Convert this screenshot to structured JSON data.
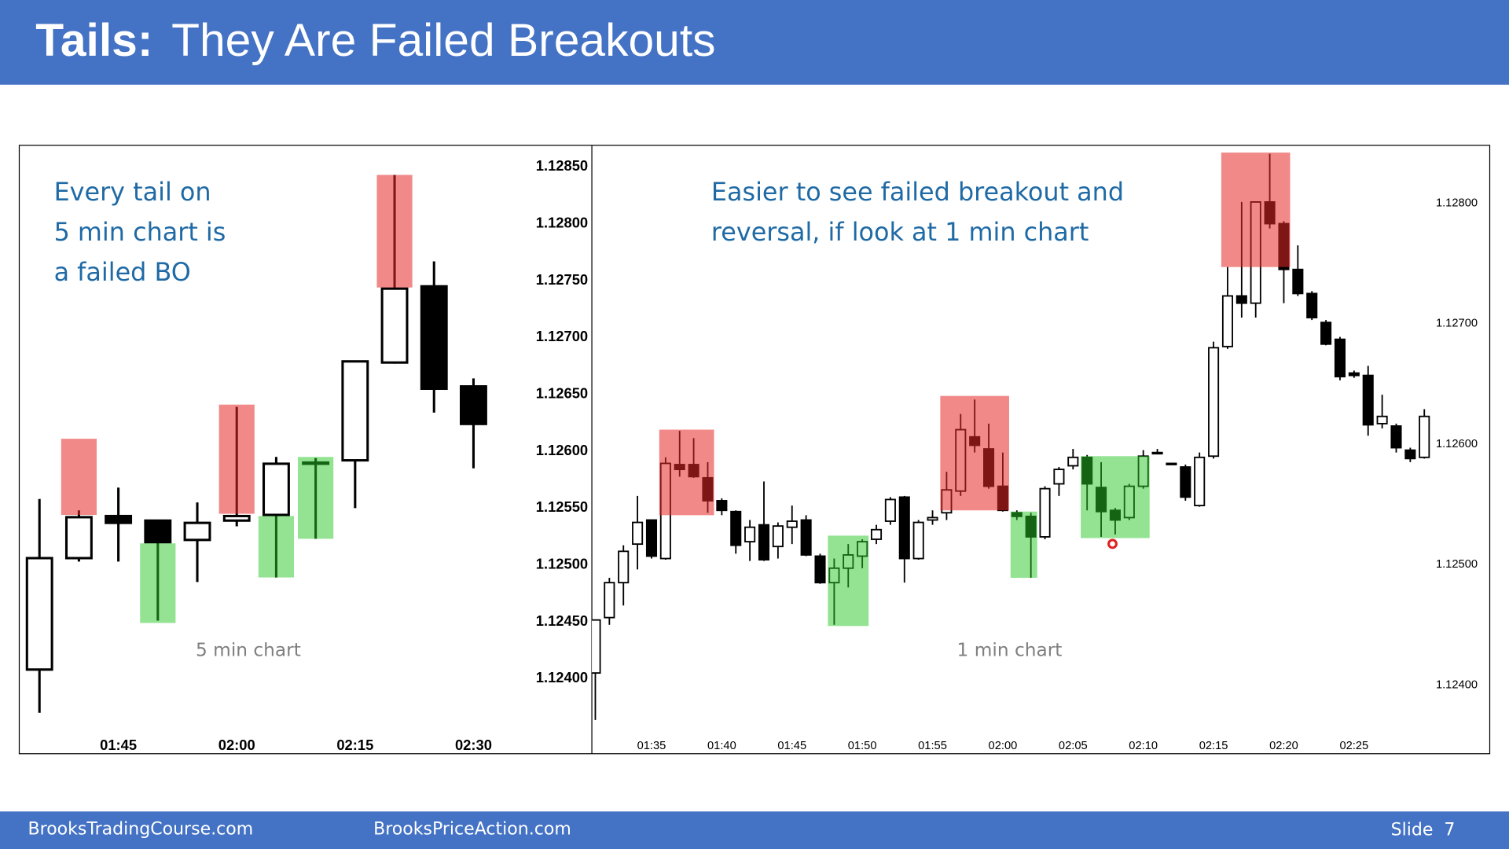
{
  "header": {
    "title_bold": "Tails:",
    "title": "They Are Failed Breakouts"
  },
  "chart_data": [
    {
      "type": "candlestick",
      "label": "5 min chart",
      "annotation": [
        "Every tail on",
        "5 min chart is",
        "a failed BO"
      ],
      "categories": [
        null,
        null,
        "01:45",
        null,
        null,
        "02:00",
        null,
        null,
        "02:15",
        null,
        null,
        "02:30"
      ],
      "open": [
        1.12408,
        1.12506,
        1.12543,
        1.12539,
        1.12522,
        1.12539,
        1.12544,
        1.12589,
        1.12592,
        1.12678,
        1.12745,
        1.12657
      ],
      "high": [
        1.12558,
        1.12548,
        1.12568,
        1.12539,
        1.12555,
        1.12639,
        1.12595,
        1.12594,
        1.12679,
        1.12843,
        1.12767,
        1.12664
      ],
      "low": [
        1.1237,
        1.12503,
        1.12503,
        1.12451,
        1.12485,
        1.12534,
        1.12489,
        1.12523,
        1.1255,
        1.12677,
        1.12634,
        1.12585
      ],
      "close": [
        1.12506,
        1.12542,
        1.12537,
        1.1252,
        1.12537,
        1.12543,
        1.12589,
        1.1259,
        1.12679,
        1.12743,
        1.12655,
        1.12624
      ],
      "up_color": "#ffffff",
      "down_color": "#000000",
      "ylim": [
        1.12334,
        1.12869
      ],
      "yticks": [
        {
          "value": 1.1285,
          "label": "1.12850"
        },
        {
          "value": 1.128,
          "label": "1.12800"
        },
        {
          "value": 1.1275,
          "label": "1.12750"
        },
        {
          "value": 1.127,
          "label": "1.12700"
        },
        {
          "value": 1.1265,
          "label": "1.12650"
        },
        {
          "value": 1.126,
          "label": "1.12600"
        },
        {
          "value": 1.1255,
          "label": "1.12550"
        },
        {
          "value": 1.125,
          "label": "1.12500"
        },
        {
          "value": 1.1245,
          "label": "1.12450"
        },
        {
          "value": 1.124,
          "label": "1.12400"
        }
      ],
      "highlights": [
        {
          "start": 1,
          "end": 1,
          "range": [
            1.12611,
            1.12544
          ],
          "color": "rgba(230,40,40,0.55)"
        },
        {
          "start": 3,
          "end": 3,
          "range": [
            1.12519,
            1.12449
          ],
          "color": "rgba(40,200,40,0.5)"
        },
        {
          "start": 5,
          "end": 5,
          "range": [
            1.12641,
            1.12545
          ],
          "color": "rgba(230,40,40,0.55)"
        },
        {
          "start": 6,
          "end": 6,
          "range": [
            1.12543,
            1.12489
          ],
          "color": "rgba(40,200,40,0.5)"
        },
        {
          "start": 7,
          "end": 7,
          "range": [
            1.12595,
            1.12523
          ],
          "color": "rgba(40,200,40,0.5)"
        },
        {
          "start": 9,
          "end": 9,
          "range": [
            1.12843,
            1.12744
          ],
          "color": "rgba(230,40,40,0.55)"
        }
      ]
    },
    {
      "type": "candlestick",
      "label": "1 min chart",
      "annotation": [
        "Easier to see failed breakout and",
        "reversal, if look at 1 min chart"
      ],
      "categories": [
        null,
        null,
        null,
        null,
        "01:35",
        null,
        null,
        null,
        null,
        "01:40",
        null,
        null,
        null,
        null,
        "01:45",
        null,
        null,
        null,
        null,
        "01:50",
        null,
        null,
        null,
        null,
        "01:55",
        null,
        null,
        null,
        null,
        "02:00",
        null,
        null,
        null,
        null,
        "02:05",
        null,
        null,
        null,
        null,
        "02:10",
        null,
        null,
        null,
        null,
        "02:15",
        null,
        null,
        null,
        null,
        "02:20",
        null,
        null,
        null,
        null,
        "02:25",
        null,
        null,
        null,
        null,
        null
      ],
      "open": [
        1.1241,
        1.12456,
        1.12485,
        1.12517,
        1.12537,
        1.12505,
        1.12583,
        1.12583,
        1.12572,
        1.12553,
        1.12544,
        1.12519,
        1.12533,
        1.12515,
        1.12531,
        1.12537,
        1.12507,
        1.12485,
        1.12497,
        1.12507,
        1.12521,
        1.12536,
        1.12556,
        1.12505,
        1.12537,
        1.12543,
        1.12561,
        1.12606,
        1.12596,
        1.12565,
        1.12543,
        1.1254,
        1.12523,
        1.12567,
        1.12582,
        1.12589,
        1.12564,
        1.12545,
        1.12539,
        1.12565,
        1.12592,
        1.12584,
        1.12581,
        1.12549,
        1.1259,
        1.12681,
        1.12723,
        1.12717,
        1.12801,
        1.12783,
        1.12745,
        1.12725,
        1.12701,
        1.12687,
        1.12659,
        1.12657,
        1.12617,
        1.12615,
        1.12595,
        1.12589
      ],
      "high": [
        1.12454,
        1.12489,
        1.12516,
        1.12557,
        1.12537,
        1.12589,
        1.12611,
        1.12605,
        1.12585,
        1.12555,
        1.12545,
        1.12537,
        1.12569,
        1.12535,
        1.12549,
        1.12541,
        1.12509,
        1.12505,
        1.12517,
        1.12521,
        1.12533,
        1.12556,
        1.12557,
        1.12537,
        1.12545,
        1.12577,
        1.12625,
        1.12637,
        1.12617,
        1.12593,
        1.12545,
        1.12543,
        1.12565,
        1.12581,
        1.12596,
        1.12591,
        1.12585,
        1.12547,
        1.12567,
        1.12595,
        1.12596,
        1.12584,
        1.12583,
        1.12593,
        1.12685,
        1.12747,
        1.12801,
        1.12801,
        1.12841,
        1.12785,
        1.12765,
        1.12727,
        1.12703,
        1.12689,
        1.12661,
        1.12665,
        1.12641,
        1.12617,
        1.12597,
        1.12629
      ],
      "low": [
        1.12371,
        1.1245,
        1.12466,
        1.12496,
        1.12505,
        1.12504,
        1.12573,
        1.12572,
        1.12543,
        1.12541,
        1.12509,
        1.12503,
        1.12503,
        1.12505,
        1.12517,
        1.12507,
        1.12484,
        1.1245,
        1.12481,
        1.12497,
        1.12517,
        1.12533,
        1.12485,
        1.12504,
        1.12533,
        1.12537,
        1.12557,
        1.12593,
        1.12563,
        1.12544,
        1.12537,
        1.12489,
        1.12521,
        1.12557,
        1.12579,
        1.12545,
        1.12523,
        1.12525,
        1.12537,
        1.12563,
        1.12592,
        1.12583,
        1.12553,
        1.12548,
        1.12588,
        1.12679,
        1.12705,
        1.12705,
        1.12779,
        1.12717,
        1.12723,
        1.12703,
        1.12682,
        1.12653,
        1.12655,
        1.12607,
        1.12613,
        1.12593,
        1.12585,
        1.12588
      ],
      "close": [
        1.12454,
        1.12485,
        1.12511,
        1.12535,
        1.12507,
        1.12584,
        1.12579,
        1.12573,
        1.12553,
        1.12545,
        1.12516,
        1.12531,
        1.12504,
        1.12532,
        1.12536,
        1.12508,
        1.12485,
        1.12497,
        1.12508,
        1.12519,
        1.12529,
        1.12554,
        1.12505,
        1.12535,
        1.12539,
        1.12562,
        1.12612,
        1.12599,
        1.12565,
        1.12545,
        1.1254,
        1.12523,
        1.12563,
        1.12579,
        1.12589,
        1.12567,
        1.12544,
        1.12537,
        1.12565,
        1.1259,
        1.12593,
        1.12583,
        1.12556,
        1.12589,
        1.1268,
        1.12723,
        1.12717,
        1.12801,
        1.12783,
        1.12745,
        1.12725,
        1.12705,
        1.12683,
        1.12656,
        1.12657,
        1.12616,
        1.12623,
        1.12597,
        1.12588,
        1.12623
      ],
      "up_color": "#ffffff",
      "down_color": "#000000",
      "ylim": [
        1.12343,
        1.12848
      ],
      "yticks": [
        {
          "value": 1.128,
          "label": "1.12800"
        },
        {
          "value": 1.127,
          "label": "1.12700"
        },
        {
          "value": 1.126,
          "label": "1.12600"
        },
        {
          "value": 1.125,
          "label": "1.12500"
        },
        {
          "value": 1.124,
          "label": "1.12400"
        }
      ],
      "highlights": [
        {
          "start": 5,
          "end": 8,
          "range": [
            1.12612,
            1.12541
          ],
          "color": "rgba(230,40,40,0.55)"
        },
        {
          "start": 17,
          "end": 19,
          "range": [
            1.12524,
            1.12449
          ],
          "color": "rgba(40,200,40,0.5)"
        },
        {
          "start": 25,
          "end": 29,
          "range": [
            1.1264,
            1.12545
          ],
          "color": "rgba(230,40,40,0.55)"
        },
        {
          "start": 30,
          "end": 31,
          "range": [
            1.12544,
            1.12489
          ],
          "color": "rgba(40,200,40,0.5)"
        },
        {
          "start": 35,
          "end": 39,
          "range": [
            1.1259,
            1.12522
          ],
          "color": "rgba(40,200,40,0.5)"
        },
        {
          "start": 45,
          "end": 49,
          "range": [
            1.12842,
            1.12747
          ],
          "color": "rgba(230,40,40,0.55)"
        }
      ]
    }
  ],
  "footer": {
    "left": "BrooksTradingCourse.com",
    "center": "BrooksPriceAction.com",
    "slide": "Slide  7"
  }
}
